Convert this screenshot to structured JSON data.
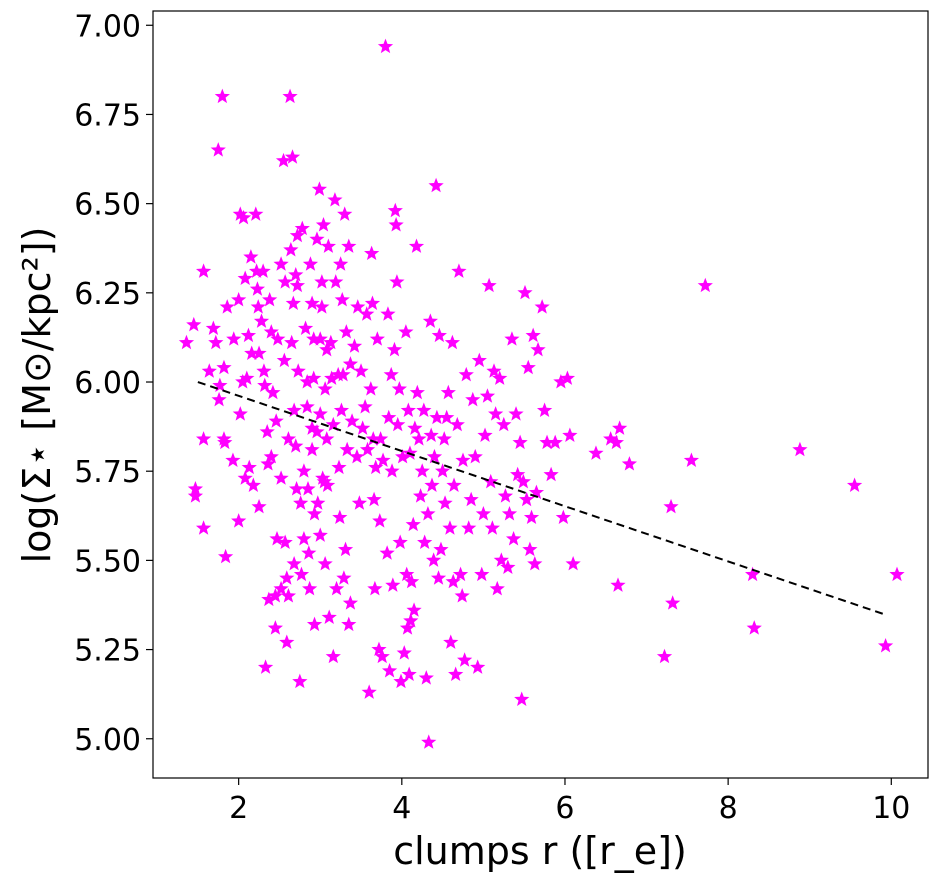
{
  "chart_data": {
    "type": "scatter",
    "title": "",
    "xlabel": "clumps r ([r_e])",
    "ylabel": "log(Σ⋆ [M⊙/kpc²])",
    "xlim": [
      0.95,
      10.45
    ],
    "ylim": [
      4.89,
      7.04
    ],
    "xticks": [
      "2",
      "4",
      "6",
      "8",
      "10"
    ],
    "yticks": [
      "5.00",
      "5.25",
      "5.50",
      "5.75",
      "6.00",
      "6.25",
      "6.50",
      "6.75",
      "7.00"
    ],
    "grid": false,
    "marker": "star",
    "marker_color": "#ff00ff",
    "fit_line": {
      "x": [
        1.5,
        9.9
      ],
      "y": [
        6.0,
        5.35
      ],
      "color": "#000000",
      "style": "dashed"
    },
    "points": [
      [
        1.36,
        6.11
      ],
      [
        1.45,
        6.16
      ],
      [
        1.47,
        5.7
      ],
      [
        1.47,
        5.68
      ],
      [
        1.57,
        6.31
      ],
      [
        1.57,
        5.84
      ],
      [
        1.57,
        5.59
      ],
      [
        1.64,
        6.03
      ],
      [
        1.69,
        6.15
      ],
      [
        1.72,
        6.11
      ],
      [
        1.75,
        6.65
      ],
      [
        1.76,
        5.95
      ],
      [
        1.77,
        5.99
      ],
      [
        1.8,
        6.8
      ],
      [
        1.82,
        6.04
      ],
      [
        1.82,
        5.84
      ],
      [
        1.83,
        5.83
      ],
      [
        1.84,
        5.51
      ],
      [
        1.86,
        6.21
      ],
      [
        1.93,
        5.78
      ],
      [
        1.94,
        6.12
      ],
      [
        2.0,
        6.23
      ],
      [
        2.0,
        5.61
      ],
      [
        2.02,
        6.47
      ],
      [
        2.02,
        5.91
      ],
      [
        2.05,
        6.0
      ],
      [
        2.06,
        6.46
      ],
      [
        2.08,
        6.29
      ],
      [
        2.08,
        5.73
      ],
      [
        2.1,
        6.01
      ],
      [
        2.12,
        6.13
      ],
      [
        2.13,
        5.76
      ],
      [
        2.15,
        6.35
      ],
      [
        2.16,
        6.08
      ],
      [
        2.18,
        5.71
      ],
      [
        2.21,
        6.47
      ],
      [
        2.22,
        6.31
      ],
      [
        2.23,
        6.26
      ],
      [
        2.24,
        6.21
      ],
      [
        2.25,
        6.08
      ],
      [
        2.25,
        5.65
      ],
      [
        2.28,
        6.17
      ],
      [
        2.3,
        6.31
      ],
      [
        2.31,
        6.03
      ],
      [
        2.32,
        5.99
      ],
      [
        2.33,
        5.2
      ],
      [
        2.35,
        5.86
      ],
      [
        2.36,
        5.77
      ],
      [
        2.37,
        5.39
      ],
      [
        2.38,
        6.23
      ],
      [
        2.4,
        6.14
      ],
      [
        2.4,
        5.79
      ],
      [
        2.42,
        5.97
      ],
      [
        2.45,
        5.4
      ],
      [
        2.45,
        5.31
      ],
      [
        2.46,
        5.89
      ],
      [
        2.47,
        5.56
      ],
      [
        2.48,
        6.12
      ],
      [
        2.52,
        6.33
      ],
      [
        2.52,
        5.73
      ],
      [
        2.52,
        5.42
      ],
      [
        2.55,
        6.62
      ],
      [
        2.56,
        6.06
      ],
      [
        2.57,
        6.28
      ],
      [
        2.57,
        5.55
      ],
      [
        2.59,
        5.45
      ],
      [
        2.59,
        5.27
      ],
      [
        2.61,
        5.84
      ],
      [
        2.61,
        5.4
      ],
      [
        2.63,
        6.8
      ],
      [
        2.64,
        6.37
      ],
      [
        2.65,
        6.11
      ],
      [
        2.66,
        6.63
      ],
      [
        2.67,
        6.22
      ],
      [
        2.68,
        5.92
      ],
      [
        2.68,
        5.49
      ],
      [
        2.7,
        6.3
      ],
      [
        2.7,
        5.82
      ],
      [
        2.71,
        5.7
      ],
      [
        2.72,
        6.41
      ],
      [
        2.72,
        6.27
      ],
      [
        2.73,
        6.03
      ],
      [
        2.75,
        5.16
      ],
      [
        2.76,
        5.66
      ],
      [
        2.77,
        5.46
      ],
      [
        2.78,
        6.43
      ],
      [
        2.8,
        5.75
      ],
      [
        2.8,
        5.56
      ],
      [
        2.82,
        6.15
      ],
      [
        2.84,
        6.0
      ],
      [
        2.84,
        5.93
      ],
      [
        2.85,
        5.7
      ],
      [
        2.86,
        5.52
      ],
      [
        2.87,
        5.42
      ],
      [
        2.88,
        6.33
      ],
      [
        2.9,
        6.22
      ],
      [
        2.9,
        5.87
      ],
      [
        2.9,
        5.81
      ],
      [
        2.92,
        6.12
      ],
      [
        2.92,
        6.01
      ],
      [
        2.93,
        5.63
      ],
      [
        2.93,
        5.32
      ],
      [
        2.96,
        6.4
      ],
      [
        2.96,
        5.86
      ],
      [
        2.97,
        5.66
      ],
      [
        2.99,
        6.54
      ],
      [
        3.0,
        6.12
      ],
      [
        3.0,
        5.91
      ],
      [
        3.0,
        5.57
      ],
      [
        3.02,
        6.28
      ],
      [
        3.02,
        6.21
      ],
      [
        3.03,
        5.73
      ],
      [
        3.04,
        6.44
      ],
      [
        3.05,
        5.72
      ],
      [
        3.06,
        5.98
      ],
      [
        3.06,
        5.49
      ],
      [
        3.08,
        6.09
      ],
      [
        3.08,
        5.84
      ],
      [
        3.09,
        5.71
      ],
      [
        3.1,
        6.38
      ],
      [
        3.11,
        5.34
      ],
      [
        3.13,
        6.11
      ],
      [
        3.14,
        6.01
      ],
      [
        3.16,
        5.88
      ],
      [
        3.16,
        5.23
      ],
      [
        3.18,
        6.51
      ],
      [
        3.19,
        6.28
      ],
      [
        3.2,
        5.42
      ],
      [
        3.22,
        6.02
      ],
      [
        3.23,
        5.76
      ],
      [
        3.24,
        5.62
      ],
      [
        3.25,
        6.33
      ],
      [
        3.26,
        5.92
      ],
      [
        3.27,
        6.23
      ],
      [
        3.28,
        6.02
      ],
      [
        3.29,
        5.45
      ],
      [
        3.3,
        6.47
      ],
      [
        3.31,
        5.53
      ],
      [
        3.32,
        6.14
      ],
      [
        3.33,
        5.81
      ],
      [
        3.35,
        6.38
      ],
      [
        3.35,
        5.32
      ],
      [
        3.37,
        6.05
      ],
      [
        3.37,
        5.38
      ],
      [
        3.39,
        5.89
      ],
      [
        3.42,
        6.1
      ],
      [
        3.45,
        5.79
      ],
      [
        3.46,
        6.21
      ],
      [
        3.48,
        5.66
      ],
      [
        3.5,
        6.03
      ],
      [
        3.52,
        5.87
      ],
      [
        3.55,
        5.93
      ],
      [
        3.57,
        6.19
      ],
      [
        3.58,
        5.81
      ],
      [
        3.6,
        5.13
      ],
      [
        3.62,
        5.98
      ],
      [
        3.63,
        6.36
      ],
      [
        3.64,
        6.22
      ],
      [
        3.65,
        5.84
      ],
      [
        3.66,
        5.67
      ],
      [
        3.67,
        5.42
      ],
      [
        3.68,
        5.76
      ],
      [
        3.7,
        6.12
      ],
      [
        3.72,
        5.25
      ],
      [
        3.73,
        5.61
      ],
      [
        3.74,
        5.84
      ],
      [
        3.76,
        5.23
      ],
      [
        3.77,
        5.78
      ],
      [
        3.8,
        6.94
      ],
      [
        3.82,
        5.52
      ],
      [
        3.83,
        6.19
      ],
      [
        3.84,
        5.9
      ],
      [
        3.85,
        5.19
      ],
      [
        3.87,
        6.02
      ],
      [
        3.88,
        5.75
      ],
      [
        3.89,
        5.43
      ],
      [
        3.91,
        6.09
      ],
      [
        3.92,
        6.48
      ],
      [
        3.93,
        6.44
      ],
      [
        3.94,
        6.28
      ],
      [
        3.95,
        5.88
      ],
      [
        3.97,
        5.98
      ],
      [
        3.98,
        5.55
      ],
      [
        3.99,
        5.16
      ],
      [
        4.01,
        5.79
      ],
      [
        4.03,
        5.24
      ],
      [
        4.05,
        6.14
      ],
      [
        4.06,
        5.46
      ],
      [
        4.07,
        5.31
      ],
      [
        4.08,
        5.92
      ],
      [
        4.09,
        5.18
      ],
      [
        4.1,
        5.8
      ],
      [
        4.11,
        5.33
      ],
      [
        4.12,
        5.44
      ],
      [
        4.14,
        5.6
      ],
      [
        4.15,
        5.36
      ],
      [
        4.16,
        5.87
      ],
      [
        4.18,
        6.38
      ],
      [
        4.19,
        5.97
      ],
      [
        4.21,
        5.84
      ],
      [
        4.23,
        5.68
      ],
      [
        4.25,
        5.75
      ],
      [
        4.27,
        5.92
      ],
      [
        4.28,
        5.55
      ],
      [
        4.3,
        5.17
      ],
      [
        4.32,
        5.63
      ],
      [
        4.33,
        4.99
      ],
      [
        4.35,
        6.17
      ],
      [
        4.36,
        5.85
      ],
      [
        4.37,
        5.71
      ],
      [
        4.39,
        5.5
      ],
      [
        4.4,
        5.79
      ],
      [
        4.42,
        6.55
      ],
      [
        4.43,
        5.9
      ],
      [
        4.45,
        5.45
      ],
      [
        4.46,
        6.13
      ],
      [
        4.48,
        5.53
      ],
      [
        4.5,
        5.75
      ],
      [
        4.52,
        5.84
      ],
      [
        4.53,
        5.66
      ],
      [
        4.55,
        5.9
      ],
      [
        4.57,
        5.97
      ],
      [
        4.59,
        5.59
      ],
      [
        4.6,
        5.27
      ],
      [
        4.62,
        6.11
      ],
      [
        4.63,
        5.44
      ],
      [
        4.64,
        5.71
      ],
      [
        4.66,
        5.18
      ],
      [
        4.68,
        5.88
      ],
      [
        4.7,
        6.31
      ],
      [
        4.72,
        5.46
      ],
      [
        4.74,
        5.4
      ],
      [
        4.75,
        5.78
      ],
      [
        4.77,
        5.22
      ],
      [
        4.79,
        6.02
      ],
      [
        4.82,
        5.59
      ],
      [
        4.85,
        5.67
      ],
      [
        4.87,
        5.95
      ],
      [
        4.9,
        5.79
      ],
      [
        4.93,
        5.2
      ],
      [
        4.95,
        6.06
      ],
      [
        4.98,
        5.46
      ],
      [
        5.0,
        5.63
      ],
      [
        5.02,
        5.85
      ],
      [
        5.05,
        5.96
      ],
      [
        5.07,
        6.27
      ],
      [
        5.09,
        5.72
      ],
      [
        5.11,
        5.59
      ],
      [
        5.13,
        6.03
      ],
      [
        5.15,
        5.91
      ],
      [
        5.17,
        5.42
      ],
      [
        5.2,
        6.01
      ],
      [
        5.22,
        5.5
      ],
      [
        5.25,
        5.88
      ],
      [
        5.27,
        5.68
      ],
      [
        5.3,
        5.48
      ],
      [
        5.32,
        5.63
      ],
      [
        5.35,
        6.12
      ],
      [
        5.37,
        5.56
      ],
      [
        5.4,
        5.91
      ],
      [
        5.42,
        5.74
      ],
      [
        5.45,
        5.83
      ],
      [
        5.47,
        5.11
      ],
      [
        5.49,
        5.72
      ],
      [
        5.51,
        6.25
      ],
      [
        5.53,
        5.67
      ],
      [
        5.55,
        6.04
      ],
      [
        5.57,
        5.53
      ],
      [
        5.59,
        5.62
      ],
      [
        5.61,
        6.13
      ],
      [
        5.63,
        5.49
      ],
      [
        5.65,
        5.69
      ],
      [
        5.67,
        6.09
      ],
      [
        5.72,
        6.21
      ],
      [
        5.75,
        5.92
      ],
      [
        5.78,
        5.83
      ],
      [
        5.83,
        5.74
      ],
      [
        5.88,
        5.83
      ],
      [
        5.95,
        6.0
      ],
      [
        5.98,
        5.62
      ],
      [
        6.03,
        6.01
      ],
      [
        6.06,
        5.85
      ],
      [
        6.1,
        5.49
      ],
      [
        6.38,
        5.8
      ],
      [
        6.56,
        5.84
      ],
      [
        6.63,
        5.83
      ],
      [
        6.65,
        5.43
      ],
      [
        6.67,
        5.87
      ],
      [
        6.79,
        5.77
      ],
      [
        7.22,
        5.23
      ],
      [
        7.3,
        5.65
      ],
      [
        7.32,
        5.38
      ],
      [
        7.55,
        5.78
      ],
      [
        7.72,
        6.27
      ],
      [
        8.3,
        5.46
      ],
      [
        8.32,
        5.31
      ],
      [
        8.88,
        5.81
      ],
      [
        9.55,
        5.71
      ],
      [
        9.93,
        5.26
      ],
      [
        10.07,
        5.46
      ]
    ]
  }
}
